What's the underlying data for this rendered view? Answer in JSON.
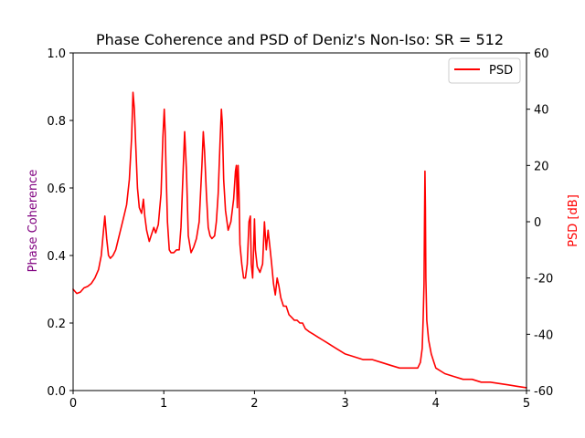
{
  "chart_data": {
    "type": "line",
    "title": "Phase Coherence and PSD of Deniz's Non-Iso: SR = 512",
    "xlabel": "",
    "xlim": [
      0,
      5
    ],
    "x_ticks": [
      0,
      1,
      2,
      3,
      4,
      5
    ],
    "y_left": {
      "label": "Phase Coherence",
      "label_color": "#800080",
      "lim": [
        0.0,
        1.0
      ],
      "ticks": [
        0.0,
        0.2,
        0.4,
        0.6,
        0.8,
        1.0
      ],
      "tick_labels": [
        "0.0",
        "0.2",
        "0.4",
        "0.6",
        "0.8",
        "1.0"
      ]
    },
    "y_right": {
      "label": "PSD [dB]",
      "label_color": "#ff0000",
      "lim": [
        -60,
        60
      ],
      "ticks": [
        -60,
        -40,
        -20,
        0,
        20,
        40,
        60
      ]
    },
    "grid": false,
    "legend": {
      "position": "top-right",
      "entries": [
        "PSD"
      ]
    },
    "series": [
      {
        "name": "PSD",
        "axis": "right",
        "color": "#ff0000",
        "x": [
          0.0,
          0.04,
          0.08,
          0.12,
          0.16,
          0.2,
          0.24,
          0.28,
          0.31,
          0.33,
          0.35,
          0.37,
          0.39,
          0.41,
          0.44,
          0.47,
          0.5,
          0.53,
          0.56,
          0.59,
          0.62,
          0.645,
          0.66,
          0.675,
          0.69,
          0.71,
          0.73,
          0.755,
          0.775,
          0.79,
          0.81,
          0.84,
          0.87,
          0.89,
          0.91,
          0.94,
          0.97,
          0.99,
          1.005,
          1.015,
          1.025,
          1.04,
          1.06,
          1.08,
          1.11,
          1.14,
          1.17,
          1.19,
          1.21,
          1.23,
          1.25,
          1.27,
          1.3,
          1.33,
          1.36,
          1.39,
          1.42,
          1.435,
          1.45,
          1.47,
          1.49,
          1.51,
          1.53,
          1.56,
          1.58,
          1.6,
          1.62,
          1.635,
          1.645,
          1.66,
          1.68,
          1.71,
          1.74,
          1.77,
          1.79,
          1.8,
          1.81,
          1.82,
          1.83,
          1.84,
          1.86,
          1.88,
          1.9,
          1.92,
          1.94,
          1.955,
          1.965,
          1.98,
          1.99,
          2.0,
          2.01,
          2.03,
          2.06,
          2.09,
          2.11,
          2.12,
          2.13,
          2.15,
          2.17,
          2.19,
          2.21,
          2.23,
          2.25,
          2.27,
          2.29,
          2.32,
          2.35,
          2.38,
          2.41,
          2.44,
          2.47,
          2.5,
          2.53,
          2.56,
          2.6,
          2.65,
          2.7,
          2.75,
          2.8,
          2.85,
          2.9,
          2.95,
          3.0,
          3.1,
          3.2,
          3.3,
          3.4,
          3.5,
          3.6,
          3.7,
          3.8,
          3.83,
          3.85,
          3.86,
          3.87,
          3.875,
          3.88,
          3.885,
          3.89,
          3.9,
          3.92,
          3.95,
          3.98,
          4.0,
          4.1,
          4.2,
          4.3,
          4.4,
          4.5,
          4.6,
          4.7,
          4.8,
          4.9,
          5.0
        ],
        "y": [
          -24,
          -25.5,
          -25,
          -23.5,
          -23,
          -22,
          -20,
          -17,
          -12,
          -5,
          2,
          -6,
          -12,
          -13,
          -12,
          -10,
          -6,
          -2,
          2,
          6,
          15,
          30,
          46,
          40,
          28,
          12,
          5,
          3,
          8,
          2,
          -3,
          -7,
          -4,
          -2,
          -4,
          -1,
          10,
          30,
          40,
          32,
          18,
          0,
          -10,
          -11,
          -11,
          -10,
          -10,
          -2,
          15,
          32,
          18,
          -5,
          -11,
          -9,
          -6,
          0,
          20,
          32,
          25,
          10,
          -2,
          -5,
          -6,
          -5,
          0,
          10,
          28,
          40,
          35,
          15,
          4,
          -3,
          0,
          8,
          18,
          20,
          5,
          20,
          10,
          -8,
          -15,
          -20,
          -20,
          -15,
          0,
          2,
          -15,
          -20,
          -10,
          1,
          -10,
          -16,
          -18,
          -15,
          0,
          -5,
          -10,
          -3,
          -9,
          -15,
          -22,
          -26,
          -20,
          -23,
          -27,
          -30,
          -30,
          -33,
          -34,
          -35,
          -35,
          -36,
          -36,
          -38,
          -39,
          -40,
          -41,
          -42,
          -43,
          -44,
          -45,
          -46,
          -47,
          -48,
          -49,
          -49,
          -50,
          -51,
          -52,
          -52,
          -52,
          -50,
          -45,
          -35,
          -22,
          0,
          18,
          5,
          -20,
          -35,
          -42,
          -47,
          -50,
          -52,
          -54,
          -55,
          -56,
          -56,
          -57,
          -57,
          -57.5,
          -58,
          -58.5,
          -59
        ]
      }
    ]
  }
}
